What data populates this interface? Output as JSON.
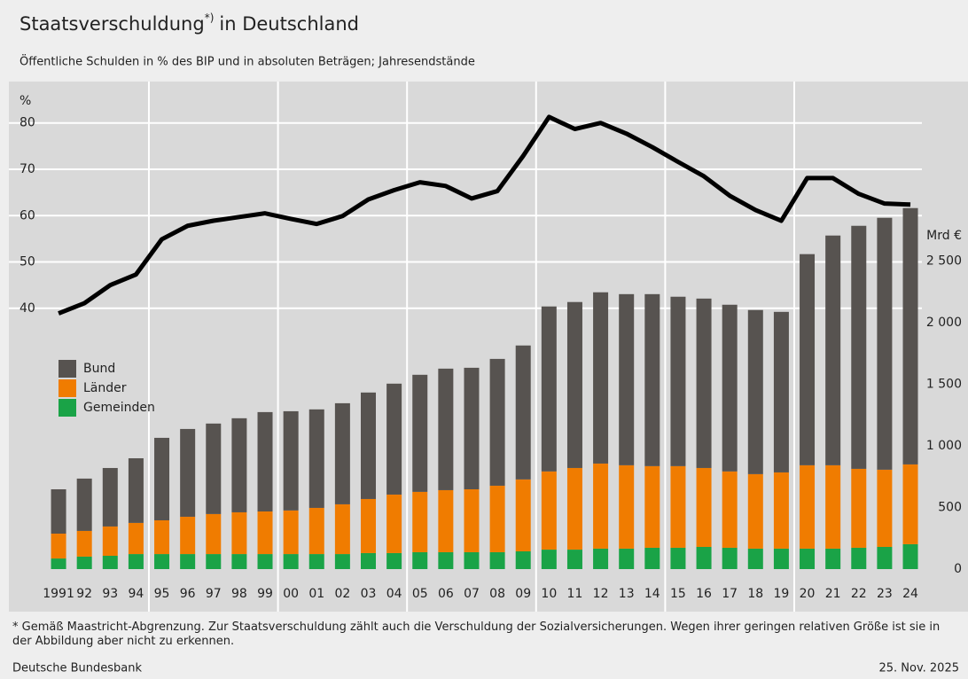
{
  "chart_data": {
    "type": "bar",
    "title": "Staatsverschuldung",
    "title_marker": "*)",
    "title_suffix": "in Deutschland",
    "subtitle": "Öffentliche Schulden in % des BIP und in absoluten Beträgen; Jahresendstände",
    "y_label": "%",
    "y2_label": "Mrd €",
    "categories": [
      "1991",
      "92",
      "93",
      "94",
      "95",
      "96",
      "97",
      "98",
      "99",
      "00",
      "01",
      "02",
      "03",
      "04",
      "05",
      "06",
      "07",
      "08",
      "09",
      "10",
      "11",
      "12",
      "13",
      "14",
      "15",
      "16",
      "17",
      "18",
      "19",
      "20",
      "21",
      "22",
      "23",
      "24"
    ],
    "series": [
      {
        "name": "Bund",
        "type": "bar",
        "axis": "y2",
        "color": "#575350",
        "values": [
          360,
          425,
          475,
          525,
          670,
          713,
          735,
          764,
          807,
          806,
          800,
          821,
          865,
          901,
          951,
          987,
          987,
          1030,
          1088,
          1340,
          1348,
          1391,
          1390,
          1397,
          1376,
          1376,
          1354,
          1333,
          1304,
          1715,
          1866,
          1974,
          2046,
          2082
        ]
      },
      {
        "name": "Länder",
        "type": "bar",
        "axis": "y2",
        "color": "#f07c00",
        "values": [
          202,
          209,
          238,
          253,
          274,
          303,
          325,
          339,
          346,
          354,
          375,
          404,
          439,
          475,
          490,
          504,
          511,
          540,
          584,
          635,
          663,
          691,
          677,
          663,
          663,
          641,
          620,
          605,
          619,
          677,
          677,
          641,
          627,
          648
        ]
      },
      {
        "name": "Gemeinden",
        "type": "bar",
        "axis": "y2",
        "color": "#1aa347",
        "values": [
          86,
          101,
          108,
          122,
          122,
          122,
          122,
          122,
          122,
          122,
          122,
          122,
          130,
          130,
          137,
          137,
          137,
          137,
          144,
          158,
          158,
          166,
          166,
          173,
          173,
          180,
          173,
          166,
          166,
          166,
          166,
          173,
          180,
          202
        ]
      },
      {
        "type": "line",
        "axis": "y",
        "color": "#000000",
        "values": [
          38.9,
          41.1,
          45.0,
          47.3,
          54.9,
          57.8,
          58.9,
          59.7,
          60.5,
          59.3,
          58.2,
          59.9,
          63.5,
          65.5,
          67.2,
          66.4,
          63.7,
          65.3,
          72.9,
          81.3,
          78.7,
          80.0,
          77.7,
          74.8,
          71.6,
          68.5,
          64.3,
          61.2,
          58.9,
          68.1,
          68.1,
          64.7,
          62.6,
          62.4
        ]
      }
    ],
    "ylim": [
      -16.3,
      85.5
    ],
    "yticks": [
      40,
      50,
      60,
      70,
      80
    ],
    "y2lim": [
      0,
      3830
    ],
    "y2ticks": [
      0,
      500,
      {
        "value": 1000,
        "label": "1 000"
      },
      {
        "value": 1500,
        "label": "1 500"
      },
      {
        "value": 2000,
        "label": "2 000"
      },
      {
        "value": 2500,
        "label": "2 500"
      }
    ],
    "grid": true,
    "legend": "upper left",
    "footnote": "* Gemäß Maastricht-Abgrenzung. Zur Staatsverschuldung zählt auch die Verschuldung der Sozialversicherungen. Wegen ihrer geringen relativen Größe ist sie in der Abbildung aber nicht zu erkennen.",
    "source": "Deutsche Bundesbank",
    "date": "25. Nov. 2025"
  }
}
